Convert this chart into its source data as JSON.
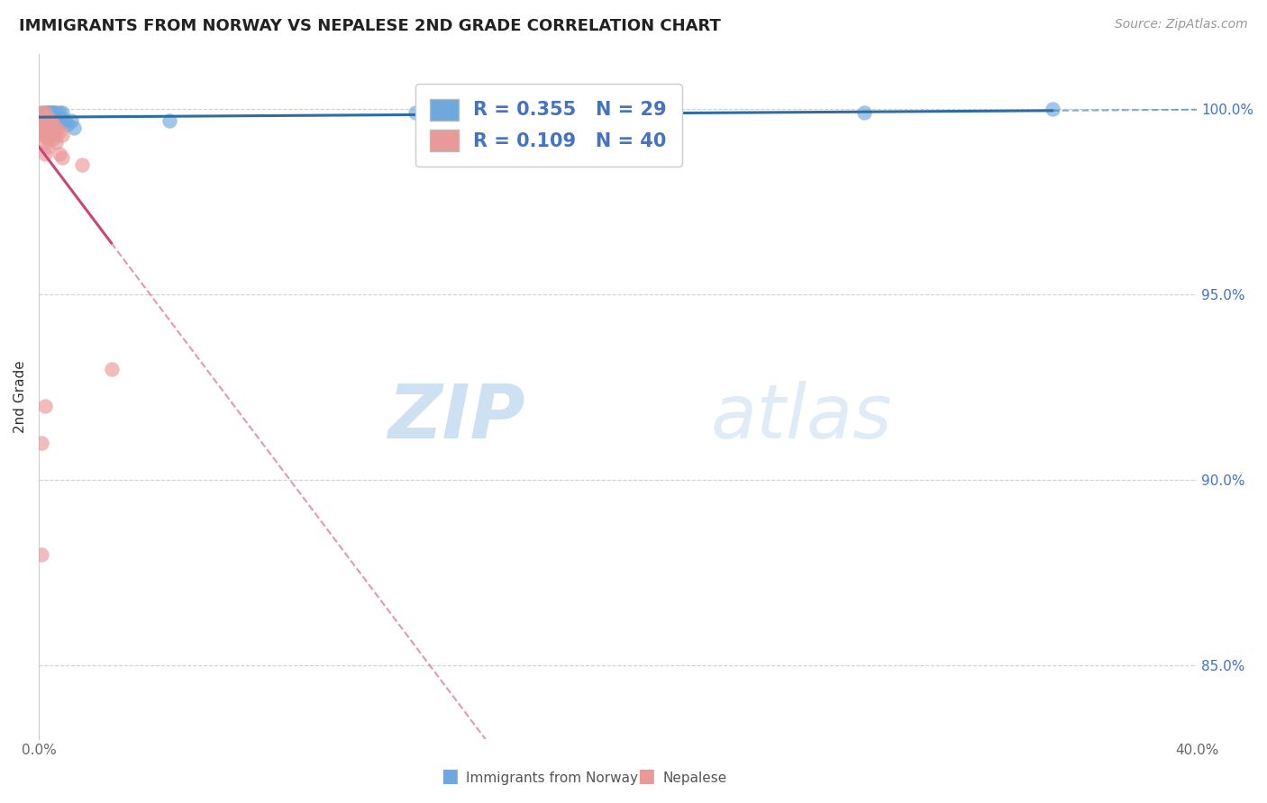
{
  "title": "IMMIGRANTS FROM NORWAY VS NEPALESE 2ND GRADE CORRELATION CHART",
  "source": "Source: ZipAtlas.com",
  "ylabel": "2nd Grade",
  "xlim": [
    0.0,
    0.4
  ],
  "ylim": [
    0.83,
    1.015
  ],
  "blue_color": "#6fa8dc",
  "blue_line_color": "#2e6da4",
  "pink_color": "#ea9999",
  "pink_line_color": "#cc4477",
  "norway_R": 0.355,
  "norway_N": 29,
  "nepalese_R": 0.109,
  "nepalese_N": 40,
  "legend_label_norway": "Immigrants from Norway",
  "legend_label_nepalese": "Nepalese",
  "watermark_zip": "ZIP",
  "watermark_atlas": "atlas",
  "right_yticklabels": [
    "85.0%",
    "90.0%",
    "95.0%",
    "100.0%"
  ],
  "right_yticks": [
    0.85,
    0.9,
    0.95,
    1.0
  ],
  "xtick_labels": [
    "0.0%",
    "",
    "",
    "",
    "",
    "",
    "",
    "",
    "40.0%"
  ],
  "xticks": [
    0.0,
    0.05,
    0.1,
    0.15,
    0.2,
    0.25,
    0.3,
    0.35,
    0.4
  ],
  "norway_x": [
    0.001,
    0.002,
    0.002,
    0.003,
    0.003,
    0.003,
    0.003,
    0.004,
    0.004,
    0.004,
    0.005,
    0.005,
    0.005,
    0.006,
    0.006,
    0.006,
    0.006,
    0.007,
    0.007,
    0.008,
    0.008,
    0.009,
    0.01,
    0.011,
    0.012,
    0.045,
    0.13,
    0.285,
    0.35
  ],
  "norway_y": [
    0.999,
    0.999,
    0.998,
    0.999,
    0.999,
    0.998,
    0.997,
    0.999,
    0.999,
    0.998,
    0.999,
    0.999,
    0.997,
    0.999,
    0.998,
    0.997,
    0.996,
    0.999,
    0.998,
    0.999,
    0.997,
    0.997,
    0.996,
    0.997,
    0.995,
    0.997,
    0.999,
    0.999,
    1.0
  ],
  "nepalese_x": [
    0.001,
    0.001,
    0.001,
    0.001,
    0.001,
    0.001,
    0.001,
    0.001,
    0.001,
    0.001,
    0.001,
    0.001,
    0.001,
    0.001,
    0.002,
    0.002,
    0.002,
    0.002,
    0.002,
    0.002,
    0.002,
    0.002,
    0.002,
    0.002,
    0.003,
    0.003,
    0.003,
    0.003,
    0.004,
    0.004,
    0.005,
    0.005,
    0.005,
    0.005,
    0.006,
    0.006,
    0.007,
    0.007,
    0.008,
    0.015
  ],
  "nepalese_y": [
    0.999,
    0.998,
    0.997,
    0.996,
    0.995,
    0.994,
    0.993,
    0.992,
    0.991,
    0.99,
    0.989,
    0.988,
    0.987,
    0.985,
    0.997,
    0.995,
    0.993,
    0.991,
    0.989,
    0.987,
    0.985,
    0.983,
    0.981,
    0.979,
    0.996,
    0.994,
    0.992,
    0.99,
    0.995,
    0.993,
    0.994,
    0.992,
    0.99,
    0.988,
    0.993,
    0.991,
    0.992,
    0.985,
    0.983,
    0.978
  ]
}
